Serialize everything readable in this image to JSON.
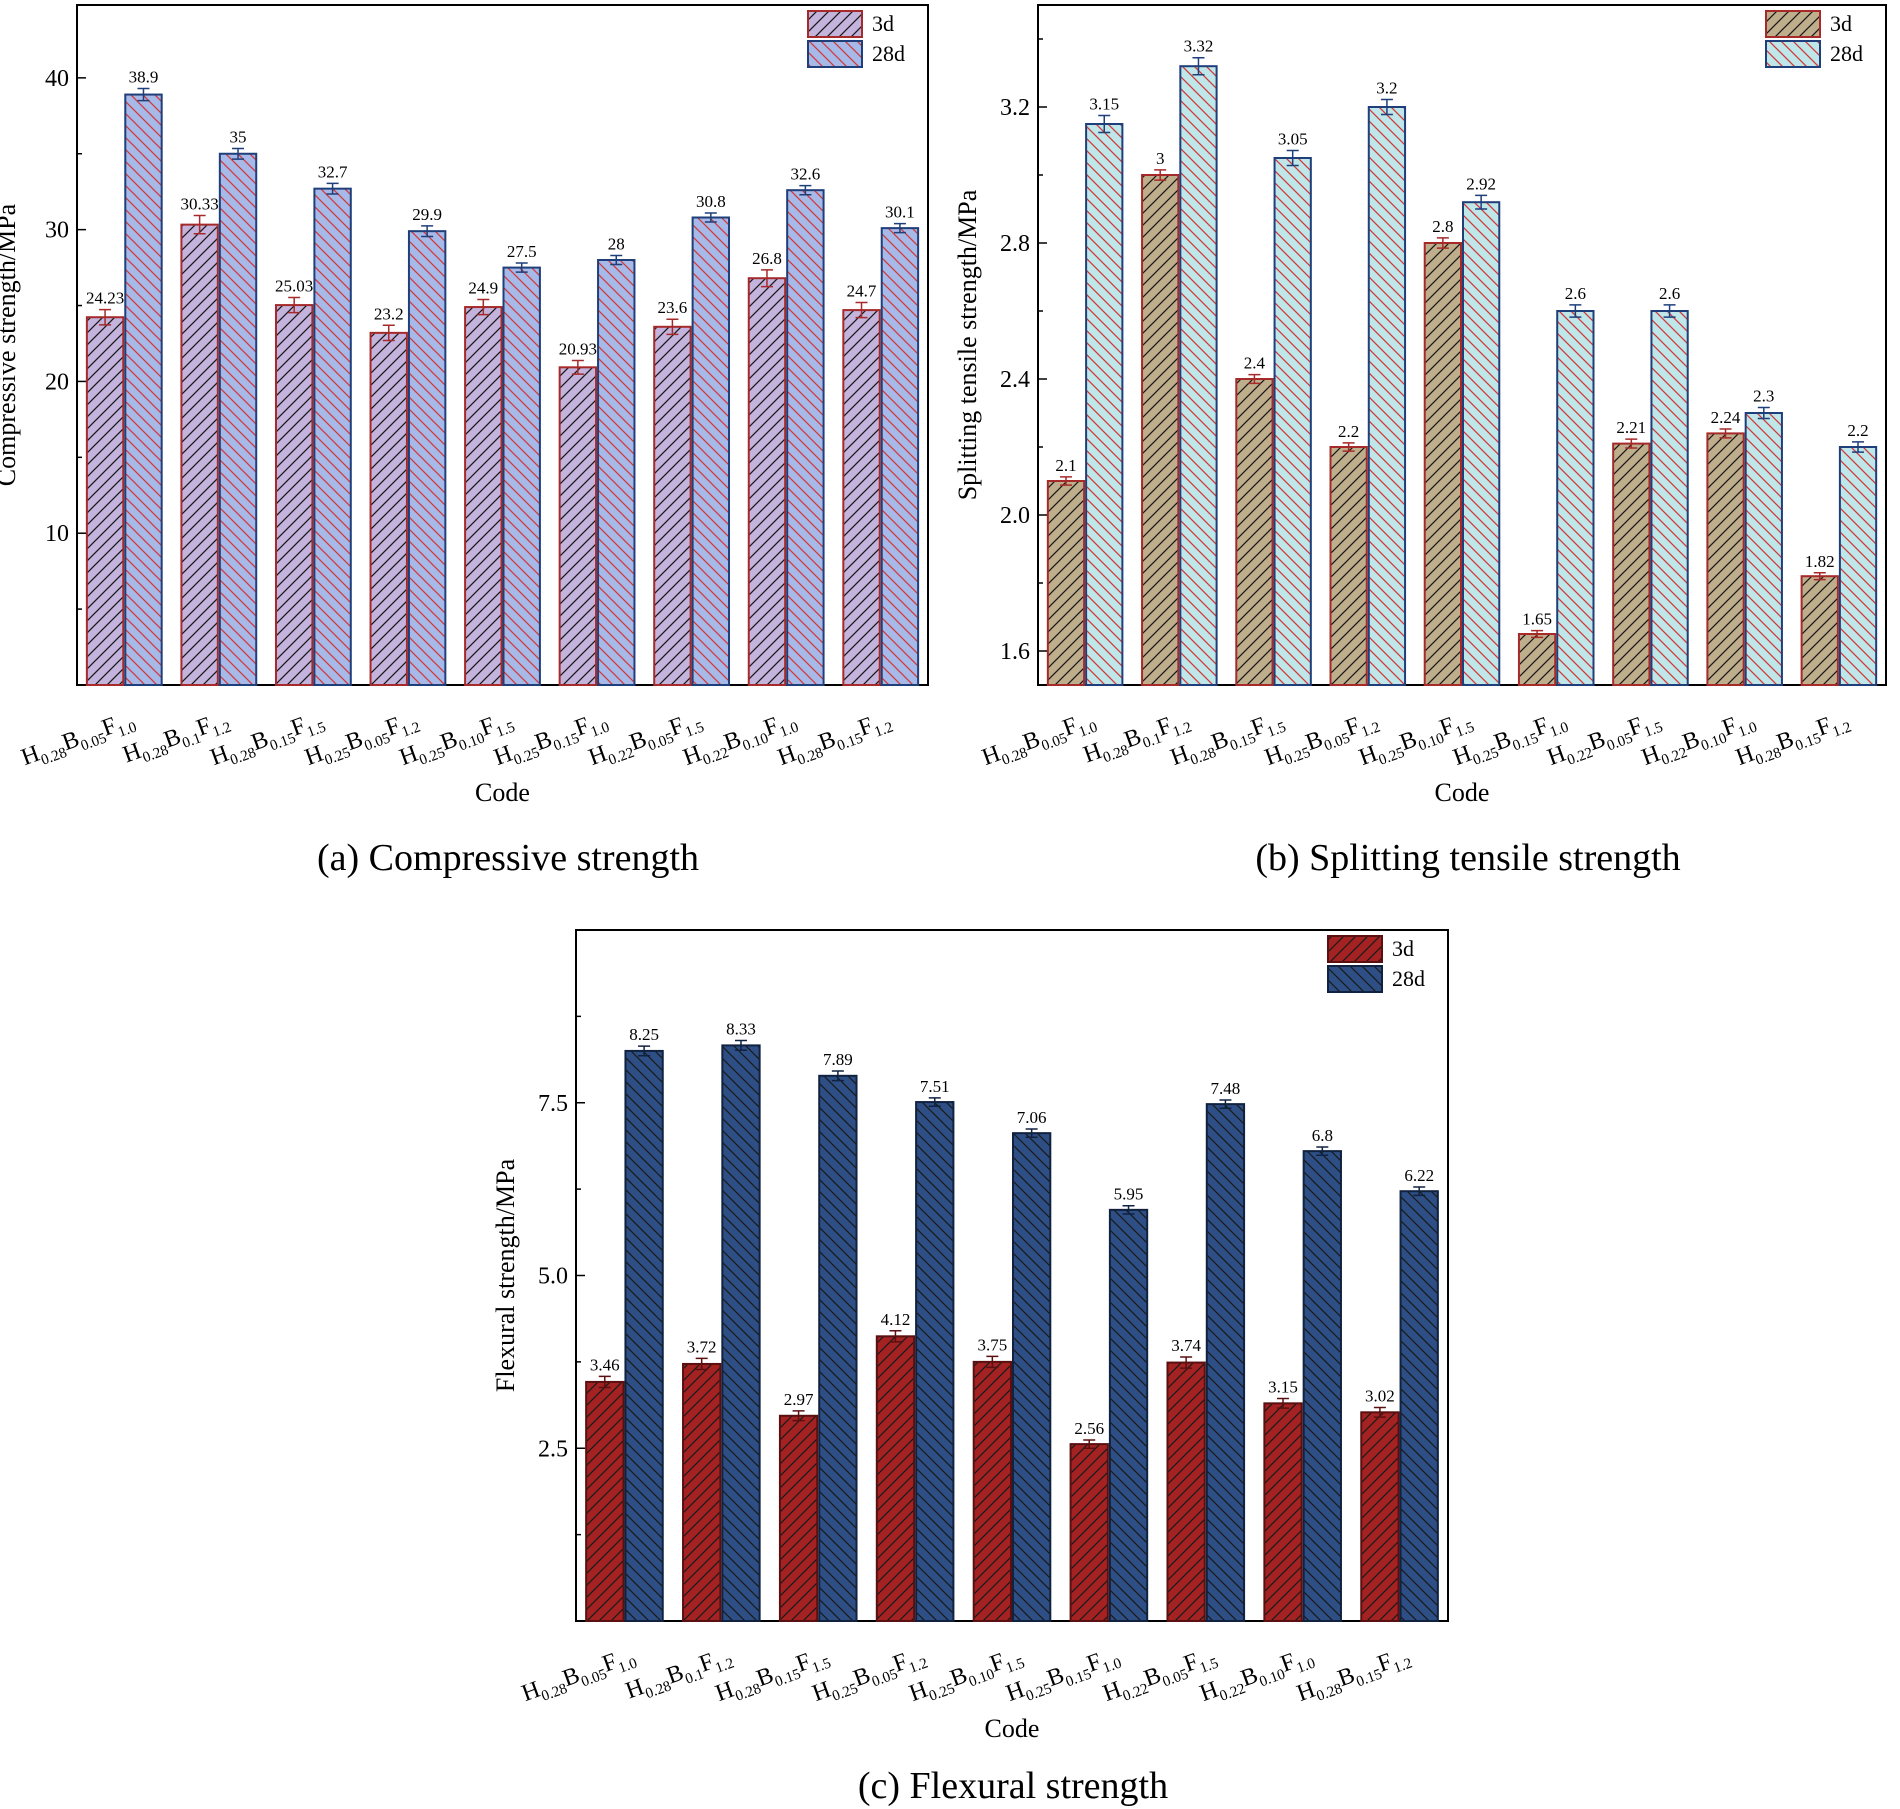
{
  "captions": {
    "a": "(a) Compressive strength",
    "b": "(b) Splitting tensile strength",
    "c": "(c) Flexural strength"
  },
  "chart_data": [
    {
      "id": "a",
      "type": "bar",
      "title": "Compressive strength",
      "xlabel": "Code",
      "ylabel": "Compressive strength/MPa",
      "ylim": [
        0,
        44.8
      ],
      "yticks": [
        "10",
        "20",
        "30",
        "40"
      ],
      "ytick_values": [
        10,
        20,
        30,
        40
      ],
      "categories": [
        {
          "base": "H",
          "s1": "0.28",
          "m2": "B",
          "s2": "0.05",
          "m3": "F",
          "s3": "1.0"
        },
        {
          "base": "H",
          "s1": "0.28",
          "m2": "B",
          "s2": "0.1",
          "m3": "F",
          "s3": "1.2"
        },
        {
          "base": "H",
          "s1": "0.28",
          "m2": "B",
          "s2": "0.15",
          "m3": "F",
          "s3": "1.5"
        },
        {
          "base": "H",
          "s1": "0.25",
          "m2": "B",
          "s2": "0.05",
          "m3": "F",
          "s3": "1.2"
        },
        {
          "base": "H",
          "s1": "0.25",
          "m2": "B",
          "s2": "0.10",
          "m3": "F",
          "s3": "1.5"
        },
        {
          "base": "H",
          "s1": "0.25",
          "m2": "B",
          "s2": "0.15",
          "m3": "F",
          "s3": "1.0"
        },
        {
          "base": "H",
          "s1": "0.22",
          "m2": "B",
          "s2": "0.05",
          "m3": "F",
          "s3": "1.5"
        },
        {
          "base": "H",
          "s1": "0.22",
          "m2": "B",
          "s2": "0.10",
          "m3": "F",
          "s3": "1.0"
        },
        {
          "base": "H",
          "s1": "0.28",
          "m2": "B",
          "s2": "0.15",
          "m3": "F",
          "s3": "1.2"
        }
      ],
      "series": [
        {
          "name": "3d",
          "values": [
            24.23,
            30.33,
            25.03,
            23.2,
            24.9,
            20.93,
            23.6,
            26.8,
            24.7
          ],
          "labels": [
            "24.23",
            "30.33",
            "25.03",
            "23.2",
            "24.9",
            "20.93",
            "23.6",
            "26.8",
            "24.7"
          ],
          "errors": [
            0.5,
            0.6,
            0.5,
            0.5,
            0.5,
            0.45,
            0.5,
            0.55,
            0.5
          ],
          "fill": "#c4b3dc",
          "stroke": "#a62a2a",
          "hatch": "#1a1a1a",
          "hatch_dir": "/"
        },
        {
          "name": "28d",
          "values": [
            38.9,
            35,
            32.7,
            29.9,
            27.5,
            28,
            30.8,
            32.6,
            30.1
          ],
          "labels": [
            "38.9",
            "35",
            "32.7",
            "29.9",
            "27.5",
            "28",
            "30.8",
            "32.6",
            "30.1"
          ],
          "errors": [
            0.4,
            0.35,
            0.35,
            0.35,
            0.3,
            0.3,
            0.3,
            0.3,
            0.3
          ],
          "fill": "#a7b9e8",
          "stroke": "#1e3f7a",
          "hatch": "#d03a3a",
          "hatch_dir": "\\"
        }
      ],
      "legend": "top-right"
    },
    {
      "id": "b",
      "type": "bar",
      "title": "Splitting tensile strength",
      "xlabel": "Code",
      "ylabel": "Splitting tensile strength/MPa",
      "ylim": [
        1.5,
        3.5
      ],
      "yticks": [
        "1.6",
        "2.0",
        "2.4",
        "2.8",
        "3.2"
      ],
      "ytick_values": [
        1.6,
        2.0,
        2.4,
        2.8,
        3.2
      ],
      "categories": [
        {
          "base": "H",
          "s1": "0.28",
          "m2": "B",
          "s2": "0.05",
          "m3": "F",
          "s3": "1.0"
        },
        {
          "base": "H",
          "s1": "0.28",
          "m2": "B",
          "s2": "0.1",
          "m3": "F",
          "s3": "1.2"
        },
        {
          "base": "H",
          "s1": "0.28",
          "m2": "B",
          "s2": "0.15",
          "m3": "F",
          "s3": "1.5"
        },
        {
          "base": "H",
          "s1": "0.25",
          "m2": "B",
          "s2": "0.05",
          "m3": "F",
          "s3": "1.2"
        },
        {
          "base": "H",
          "s1": "0.25",
          "m2": "B",
          "s2": "0.10",
          "m3": "F",
          "s3": "1.5"
        },
        {
          "base": "H",
          "s1": "0.25",
          "m2": "B",
          "s2": "0.15",
          "m3": "F",
          "s3": "1.0"
        },
        {
          "base": "H",
          "s1": "0.22",
          "m2": "B",
          "s2": "0.05",
          "m3": "F",
          "s3": "1.5"
        },
        {
          "base": "H",
          "s1": "0.22",
          "m2": "B",
          "s2": "0.10",
          "m3": "F",
          "s3": "1.0"
        },
        {
          "base": "H",
          "s1": "0.28",
          "m2": "B",
          "s2": "0.15",
          "m3": "F",
          "s3": "1.2"
        }
      ],
      "series": [
        {
          "name": "3d",
          "values": [
            2.1,
            3.0,
            2.4,
            2.2,
            2.8,
            1.65,
            2.21,
            2.24,
            1.82
          ],
          "labels": [
            "2.1",
            "3",
            "2.4",
            "2.2",
            "2.8",
            "1.65",
            "2.21",
            "2.24",
            "1.82"
          ],
          "errors": [
            0.012,
            0.015,
            0.013,
            0.012,
            0.015,
            0.01,
            0.013,
            0.013,
            0.01
          ],
          "fill": "#bfae8c",
          "stroke": "#a62a2a",
          "hatch": "#1a1a1a",
          "hatch_dir": "/"
        },
        {
          "name": "28d",
          "values": [
            3.15,
            3.32,
            3.05,
            3.2,
            2.92,
            2.6,
            2.6,
            2.3,
            2.2
          ],
          "labels": [
            "3.15",
            "3.32",
            "3.05",
            "3.2",
            "2.92",
            "2.6",
            "2.6",
            "2.3",
            "2.2"
          ],
          "errors": [
            0.025,
            0.025,
            0.022,
            0.022,
            0.02,
            0.018,
            0.018,
            0.016,
            0.015
          ],
          "fill": "#bfe6e8",
          "stroke": "#1e3f7a",
          "hatch": "#d03a3a",
          "hatch_dir": "\\"
        }
      ],
      "legend": "top-right"
    },
    {
      "id": "c",
      "type": "bar",
      "title": "Flexural strength",
      "xlabel": "Code",
      "ylabel": "Flexural strength/MPa",
      "ylim": [
        0,
        10
      ],
      "yticks": [
        "2.5",
        "5.0",
        "7.5"
      ],
      "ytick_values": [
        2.5,
        5.0,
        7.5
      ],
      "categories": [
        {
          "base": "H",
          "s1": "0.28",
          "m2": "B",
          "s2": "0.05",
          "m3": "F",
          "s3": "1.0"
        },
        {
          "base": "H",
          "s1": "0.28",
          "m2": "B",
          "s2": "0.1",
          "m3": "F",
          "s3": "1.2"
        },
        {
          "base": "H",
          "s1": "0.28",
          "m2": "B",
          "s2": "0.15",
          "m3": "F",
          "s3": "1.5"
        },
        {
          "base": "H",
          "s1": "0.25",
          "m2": "B",
          "s2": "0.05",
          "m3": "F",
          "s3": "1.2"
        },
        {
          "base": "H",
          "s1": "0.25",
          "m2": "B",
          "s2": "0.10",
          "m3": "F",
          "s3": "1.5"
        },
        {
          "base": "H",
          "s1": "0.25",
          "m2": "B",
          "s2": "0.15",
          "m3": "F",
          "s3": "1.0"
        },
        {
          "base": "H",
          "s1": "0.22",
          "m2": "B",
          "s2": "0.05",
          "m3": "F",
          "s3": "1.5"
        },
        {
          "base": "H",
          "s1": "0.22",
          "m2": "B",
          "s2": "0.10",
          "m3": "F",
          "s3": "1.0"
        },
        {
          "base": "H",
          "s1": "0.28",
          "m2": "B",
          "s2": "0.15",
          "m3": "F",
          "s3": "1.2"
        }
      ],
      "series": [
        {
          "name": "3d",
          "values": [
            3.46,
            3.72,
            2.97,
            4.12,
            3.75,
            2.56,
            3.74,
            3.15,
            3.02
          ],
          "labels": [
            "3.46",
            "3.72",
            "2.97",
            "4.12",
            "3.75",
            "2.56",
            "3.74",
            "3.15",
            "3.02"
          ],
          "errors": [
            0.08,
            0.08,
            0.07,
            0.08,
            0.08,
            0.06,
            0.08,
            0.07,
            0.07
          ],
          "fill": "#a52222",
          "stroke": "#5a1010",
          "hatch": "#1a1a1a",
          "hatch_dir": "/"
        },
        {
          "name": "28d",
          "values": [
            8.25,
            8.33,
            7.89,
            7.51,
            7.06,
            5.95,
            7.48,
            6.8,
            6.22
          ],
          "labels": [
            "8.25",
            "8.33",
            "7.89",
            "7.51",
            "7.06",
            "5.95",
            "7.48",
            "6.8",
            "6.22"
          ],
          "errors": [
            0.07,
            0.07,
            0.07,
            0.06,
            0.06,
            0.06,
            0.06,
            0.06,
            0.06
          ],
          "fill": "#2d4f86",
          "stroke": "#10223f",
          "hatch": "#1a1a1a",
          "hatch_dir": "\\"
        }
      ],
      "legend": "top-right"
    }
  ]
}
